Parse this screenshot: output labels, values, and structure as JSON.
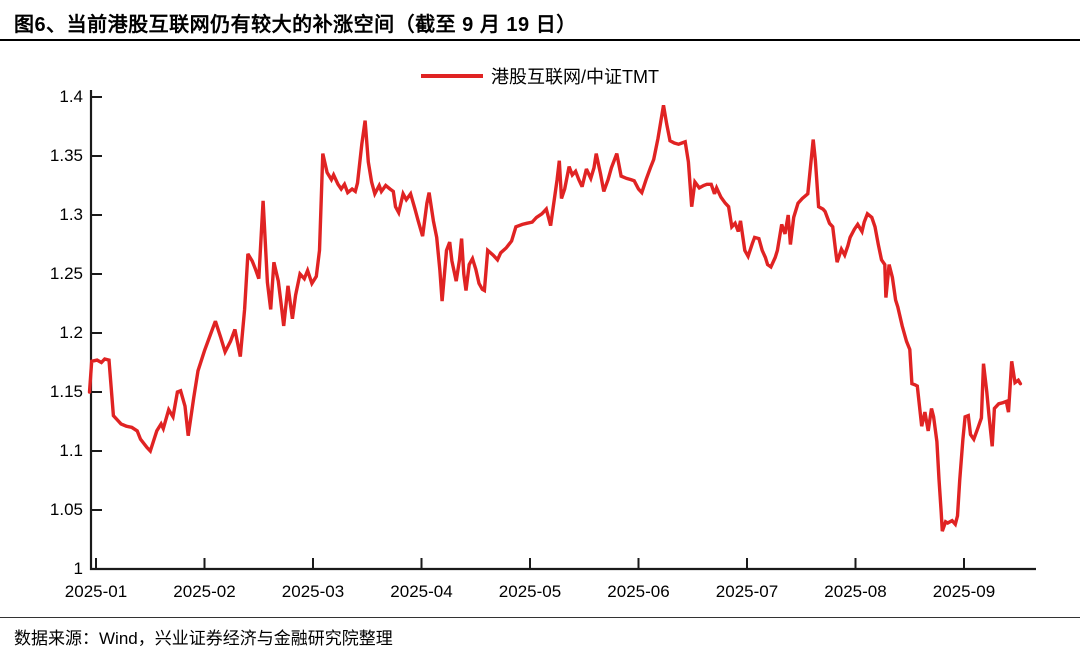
{
  "header": {
    "title": "图6、当前港股互联网仍有较大的补涨空间（截至 9 月 19 日）"
  },
  "legend": {
    "label": "港股互联网/中证TMT"
  },
  "footer": {
    "source": "数据来源：Wind，兴业证券经济与金融研究院整理"
  },
  "colors": {
    "line": "#e02323",
    "axis": "#1a1a1a",
    "rule": "#000000"
  },
  "chart_data": {
    "type": "line",
    "title": "港股互联网/中证TMT",
    "xlabel": "",
    "ylabel": "",
    "grid": false,
    "legend_position": "top-center",
    "ylim": [
      1.0,
      1.4
    ],
    "y_tick_values": [
      1.4,
      1.35,
      1.3,
      1.25,
      1.2,
      1.15,
      1.1,
      1.05,
      1
    ],
    "y_tick_labels": [
      "1.4",
      "1.35",
      "1.3",
      "1.25",
      "1.2",
      "1.15",
      "1.1",
      "1.05",
      "1"
    ],
    "x_tick_labels": [
      "2025-01",
      "2025-02",
      "2025-03",
      "2025-04",
      "2025-05",
      "2025-06",
      "2025-07",
      "2025-08",
      "2025-09"
    ],
    "x_unit": "months after 2025-01 tick (daily data, ends 2025-09-19)",
    "series": [
      {
        "name": "港股互联网/中证TMT",
        "color": "#e02323",
        "points": [
          [
            -0.06,
            1.15
          ],
          [
            -0.04,
            1.176
          ],
          [
            0.01,
            1.177
          ],
          [
            0.05,
            1.175
          ],
          [
            0.08,
            1.178
          ],
          [
            0.12,
            1.177
          ],
          [
            0.16,
            1.13
          ],
          [
            0.19,
            1.127
          ],
          [
            0.23,
            1.123
          ],
          [
            0.28,
            1.121
          ],
          [
            0.33,
            1.12
          ],
          [
            0.38,
            1.117
          ],
          [
            0.41,
            1.11
          ],
          [
            0.47,
            1.103
          ],
          [
            0.5,
            1.1
          ],
          [
            0.56,
            1.117
          ],
          [
            0.6,
            1.123
          ],
          [
            0.62,
            1.119
          ],
          [
            0.67,
            1.135
          ],
          [
            0.71,
            1.129
          ],
          [
            0.75,
            1.15
          ],
          [
            0.78,
            1.151
          ],
          [
            0.82,
            1.138
          ],
          [
            0.85,
            1.113
          ],
          [
            0.9,
            1.145
          ],
          [
            0.94,
            1.168
          ],
          [
            1.0,
            1.185
          ],
          [
            1.06,
            1.2
          ],
          [
            1.1,
            1.21
          ],
          [
            1.15,
            1.196
          ],
          [
            1.19,
            1.184
          ],
          [
            1.24,
            1.193
          ],
          [
            1.28,
            1.203
          ],
          [
            1.33,
            1.18
          ],
          [
            1.37,
            1.22
          ],
          [
            1.4,
            1.267
          ],
          [
            1.44,
            1.261
          ],
          [
            1.47,
            1.254
          ],
          [
            1.5,
            1.246
          ],
          [
            1.54,
            1.312
          ],
          [
            1.58,
            1.243
          ],
          [
            1.61,
            1.22
          ],
          [
            1.64,
            1.26
          ],
          [
            1.68,
            1.244
          ],
          [
            1.71,
            1.222
          ],
          [
            1.73,
            1.206
          ],
          [
            1.77,
            1.24
          ],
          [
            1.81,
            1.212
          ],
          [
            1.84,
            1.232
          ],
          [
            1.88,
            1.25
          ],
          [
            1.92,
            1.246
          ],
          [
            1.95,
            1.253
          ],
          [
            1.99,
            1.242
          ],
          [
            2.03,
            1.248
          ],
          [
            2.06,
            1.27
          ],
          [
            2.09,
            1.352
          ],
          [
            2.13,
            1.336
          ],
          [
            2.17,
            1.33
          ],
          [
            2.19,
            1.334
          ],
          [
            2.23,
            1.326
          ],
          [
            2.26,
            1.322
          ],
          [
            2.29,
            1.326
          ],
          [
            2.32,
            1.319
          ],
          [
            2.36,
            1.322
          ],
          [
            2.39,
            1.32
          ],
          [
            2.41,
            1.327
          ],
          [
            2.45,
            1.36
          ],
          [
            2.48,
            1.38
          ],
          [
            2.51,
            1.345
          ],
          [
            2.54,
            1.328
          ],
          [
            2.57,
            1.318
          ],
          [
            2.61,
            1.325
          ],
          [
            2.63,
            1.32
          ],
          [
            2.67,
            1.325
          ],
          [
            2.71,
            1.322
          ],
          [
            2.74,
            1.32
          ],
          [
            2.76,
            1.307
          ],
          [
            2.79,
            1.302
          ],
          [
            2.83,
            1.318
          ],
          [
            2.86,
            1.313
          ],
          [
            2.9,
            1.318
          ],
          [
            2.94,
            1.305
          ],
          [
            2.97,
            1.295
          ],
          [
            3.01,
            1.282
          ],
          [
            3.05,
            1.31
          ],
          [
            3.07,
            1.319
          ],
          [
            3.11,
            1.295
          ],
          [
            3.14,
            1.281
          ],
          [
            3.17,
            1.253
          ],
          [
            3.19,
            1.227
          ],
          [
            3.23,
            1.27
          ],
          [
            3.26,
            1.277
          ],
          [
            3.28,
            1.261
          ],
          [
            3.32,
            1.244
          ],
          [
            3.35,
            1.262
          ],
          [
            3.37,
            1.28
          ],
          [
            3.39,
            1.25
          ],
          [
            3.41,
            1.236
          ],
          [
            3.44,
            1.258
          ],
          [
            3.47,
            1.263
          ],
          [
            3.5,
            1.254
          ],
          [
            3.53,
            1.242
          ],
          [
            3.56,
            1.237
          ],
          [
            3.58,
            1.236
          ],
          [
            3.61,
            1.27
          ],
          [
            3.66,
            1.266
          ],
          [
            3.7,
            1.262
          ],
          [
            3.73,
            1.268
          ],
          [
            3.78,
            1.272
          ],
          [
            3.83,
            1.278
          ],
          [
            3.87,
            1.29
          ],
          [
            3.93,
            1.292
          ],
          [
            3.97,
            1.293
          ],
          [
            4.02,
            1.294
          ],
          [
            4.06,
            1.298
          ],
          [
            4.11,
            1.301
          ],
          [
            4.15,
            1.305
          ],
          [
            4.19,
            1.291
          ],
          [
            4.25,
            1.33
          ],
          [
            4.27,
            1.346
          ],
          [
            4.29,
            1.314
          ],
          [
            4.32,
            1.322
          ],
          [
            4.36,
            1.341
          ],
          [
            4.39,
            1.334
          ],
          [
            4.42,
            1.337
          ],
          [
            4.45,
            1.33
          ],
          [
            4.48,
            1.324
          ],
          [
            4.52,
            1.339
          ],
          [
            4.56,
            1.331
          ],
          [
            4.59,
            1.34
          ],
          [
            4.61,
            1.352
          ],
          [
            4.65,
            1.335
          ],
          [
            4.68,
            1.32
          ],
          [
            4.72,
            1.33
          ],
          [
            4.75,
            1.34
          ],
          [
            4.8,
            1.352
          ],
          [
            4.84,
            1.333
          ],
          [
            4.89,
            1.331
          ],
          [
            4.93,
            1.33
          ],
          [
            4.96,
            1.329
          ],
          [
            5.0,
            1.322
          ],
          [
            5.03,
            1.319
          ],
          [
            5.07,
            1.33
          ],
          [
            5.11,
            1.34
          ],
          [
            5.14,
            1.347
          ],
          [
            5.18,
            1.365
          ],
          [
            5.23,
            1.393
          ],
          [
            5.26,
            1.377
          ],
          [
            5.29,
            1.363
          ],
          [
            5.33,
            1.361
          ],
          [
            5.37,
            1.36
          ],
          [
            5.4,
            1.361
          ],
          [
            5.43,
            1.362
          ],
          [
            5.46,
            1.345
          ],
          [
            5.49,
            1.307
          ],
          [
            5.52,
            1.328
          ],
          [
            5.56,
            1.323
          ],
          [
            5.6,
            1.325
          ],
          [
            5.63,
            1.326
          ],
          [
            5.67,
            1.326
          ],
          [
            5.7,
            1.318
          ],
          [
            5.72,
            1.323
          ],
          [
            5.76,
            1.315
          ],
          [
            5.8,
            1.31
          ],
          [
            5.83,
            1.307
          ],
          [
            5.86,
            1.29
          ],
          [
            5.89,
            1.293
          ],
          [
            5.92,
            1.286
          ],
          [
            5.94,
            1.295
          ],
          [
            5.98,
            1.27
          ],
          [
            6.01,
            1.265
          ],
          [
            6.05,
            1.276
          ],
          [
            6.07,
            1.281
          ],
          [
            6.11,
            1.28
          ],
          [
            6.14,
            1.27
          ],
          [
            6.17,
            1.264
          ],
          [
            6.19,
            1.258
          ],
          [
            6.22,
            1.256
          ],
          [
            6.26,
            1.264
          ],
          [
            6.28,
            1.27
          ],
          [
            6.32,
            1.292
          ],
          [
            6.35,
            1.284
          ],
          [
            6.38,
            1.3
          ],
          [
            6.4,
            1.275
          ],
          [
            6.43,
            1.298
          ],
          [
            6.47,
            1.31
          ],
          [
            6.51,
            1.314
          ],
          [
            6.56,
            1.318
          ],
          [
            6.61,
            1.364
          ],
          [
            6.63,
            1.346
          ],
          [
            6.66,
            1.307
          ],
          [
            6.7,
            1.305
          ],
          [
            6.72,
            1.303
          ],
          [
            6.76,
            1.293
          ],
          [
            6.79,
            1.29
          ],
          [
            6.82,
            1.267
          ],
          [
            6.83,
            1.26
          ],
          [
            6.87,
            1.271
          ],
          [
            6.9,
            1.266
          ],
          [
            6.93,
            1.274
          ],
          [
            6.95,
            1.281
          ],
          [
            6.99,
            1.288
          ],
          [
            7.02,
            1.292
          ],
          [
            7.06,
            1.286
          ],
          [
            7.08,
            1.294
          ],
          [
            7.11,
            1.301
          ],
          [
            7.15,
            1.298
          ],
          [
            7.18,
            1.29
          ],
          [
            7.21,
            1.275
          ],
          [
            7.24,
            1.262
          ],
          [
            7.27,
            1.258
          ],
          [
            7.28,
            1.23
          ],
          [
            7.31,
            1.258
          ],
          [
            7.34,
            1.247
          ],
          [
            7.37,
            1.228
          ],
          [
            7.39,
            1.222
          ],
          [
            7.43,
            1.206
          ],
          [
            7.47,
            1.193
          ],
          [
            7.5,
            1.186
          ],
          [
            7.52,
            1.157
          ],
          [
            7.55,
            1.156
          ],
          [
            7.57,
            1.155
          ],
          [
            7.59,
            1.138
          ],
          [
            7.61,
            1.121
          ],
          [
            7.64,
            1.133
          ],
          [
            7.67,
            1.117
          ],
          [
            7.7,
            1.136
          ],
          [
            7.72,
            1.129
          ],
          [
            7.75,
            1.108
          ],
          [
            7.77,
            1.076
          ],
          [
            7.79,
            1.048
          ],
          [
            7.8,
            1.032
          ],
          [
            7.83,
            1.04
          ],
          [
            7.85,
            1.039
          ],
          [
            7.89,
            1.041
          ],
          [
            7.92,
            1.038
          ],
          [
            7.94,
            1.045
          ],
          [
            7.96,
            1.075
          ],
          [
            7.99,
            1.11
          ],
          [
            8.01,
            1.129
          ],
          [
            8.04,
            1.13
          ],
          [
            8.06,
            1.114
          ],
          [
            8.09,
            1.11
          ],
          [
            8.13,
            1.12
          ],
          [
            8.16,
            1.128
          ],
          [
            8.18,
            1.174
          ],
          [
            8.21,
            1.15
          ],
          [
            8.23,
            1.13
          ],
          [
            8.26,
            1.104
          ],
          [
            8.28,
            1.136
          ],
          [
            8.32,
            1.14
          ],
          [
            8.36,
            1.141
          ],
          [
            8.39,
            1.142
          ],
          [
            8.41,
            1.133
          ],
          [
            8.44,
            1.176
          ],
          [
            8.47,
            1.158
          ],
          [
            8.5,
            1.16
          ],
          [
            8.52,
            1.157
          ]
        ]
      }
    ]
  }
}
